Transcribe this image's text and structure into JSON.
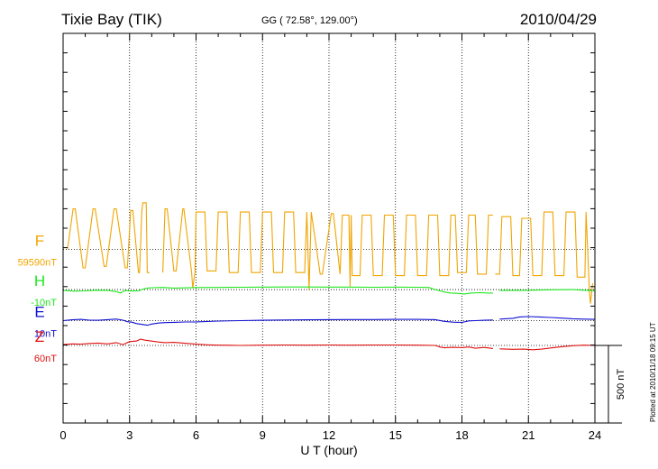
{
  "header": {
    "station": "Tixie Bay (TIK)",
    "coords": "GG ( 72.58°, 129.00°)",
    "date": "2010/04/29"
  },
  "footer": {
    "plotted": "Plotted at 2010/11/18 09:15 UT"
  },
  "chart_data": {
    "type": "line",
    "xlabel": "U T (hour)",
    "xlim": [
      0,
      24
    ],
    "xticks": [
      "0",
      "3",
      "6",
      "9",
      "12",
      "15",
      "18",
      "21",
      "24"
    ],
    "scale_bar": {
      "value": 500,
      "label": "500 nT"
    },
    "series": [
      {
        "name": "F",
        "baseline_label": "59590nT",
        "color": "#f0a500",
        "offset_nT": 620,
        "segments": [
          {
            "x": [
              0.2,
              0.45,
              0.55,
              0.9,
              1.0,
              1.35,
              1.45,
              1.85,
              1.95,
              2.3,
              2.4,
              2.8,
              2.9,
              3.05,
              3.15,
              3.4,
              3.45,
              3.55,
              3.6,
              3.75,
              3.8,
              3.9
            ],
            "y": [
              620,
              880,
              880,
              500,
              500,
              880,
              880,
              510,
              510,
              880,
              880,
              500,
              500,
              870,
              870,
              470,
              470,
              860,
              920,
              920,
              470,
              470
            ]
          },
          {
            "x": [
              4.5,
              4.6,
              4.7,
              5.0,
              5.1,
              5.4,
              5.45,
              5.8,
              5.85,
              5.95,
              6.0,
              6.4,
              6.5,
              6.9,
              7.0,
              7.4,
              7.5,
              7.9,
              8.0,
              8.4,
              8.5,
              8.9,
              9.0,
              9.4,
              9.5,
              9.9,
              10.0,
              10.4,
              10.5,
              10.9,
              11.0,
              11.1,
              11.2,
              11.6,
              11.7,
              12.1,
              12.2,
              12.5,
              12.6,
              12.9,
              12.95,
              13.0,
              13.05,
              13.4,
              13.5,
              13.9,
              14.0,
              14.4,
              14.5,
              14.9,
              15.0,
              15.4,
              15.5,
              15.9,
              16.0,
              16.4,
              16.5,
              16.9,
              17.0,
              17.4,
              17.5,
              17.7,
              17.8,
              18.2,
              18.3,
              18.6,
              18.7,
              19.1,
              19.2,
              19.4
            ],
            "y": [
              470,
              880,
              880,
              480,
              480,
              880,
              880,
              470,
              370,
              470,
              860,
              860,
              480,
              480,
              860,
              860,
              470,
              470,
              860,
              860,
              470,
              470,
              860,
              860,
              470,
              470,
              860,
              860,
              470,
              470,
              860,
              360,
              860,
              460,
              460,
              850,
              850,
              460,
              840,
              840,
              380,
              840,
              450,
              450,
              840,
              840,
              450,
              450,
              840,
              840,
              450,
              450,
              840,
              840,
              450,
              450,
              840,
              840,
              450,
              450,
              840,
              840,
              470,
              470,
              840,
              840,
              460,
              460,
              840,
              840
            ]
          },
          {
            "x": [
              19.5,
              19.7,
              19.8,
              20.2,
              20.3,
              20.6,
              20.7,
              21.1,
              21.2,
              21.6,
              21.7,
              22.1,
              22.2,
              22.6,
              22.7,
              23.1,
              23.2,
              23.55,
              23.6,
              23.75,
              23.8,
              23.9
            ],
            "y": [
              460,
              460,
              830,
              830,
              450,
              450,
              820,
              820,
              450,
              450,
              860,
              860,
              450,
              450,
              860,
              860,
              440,
              440,
              860,
              350,
              270,
              400
            ]
          }
        ]
      },
      {
        "name": "H",
        "baseline_label": "-10nT",
        "color": "#1ee81e",
        "offset_nT": 360,
        "segments": [
          {
            "x": [
              0,
              0.5,
              1.0,
              1.5,
              2.0,
              2.4,
              2.6,
              2.8,
              3.0,
              3.4,
              3.6,
              3.8,
              4.0,
              4.5,
              5.0,
              6.0,
              7.0,
              8.0,
              9.0,
              10.0,
              11.0,
              12.0,
              13.0,
              14.0,
              15.0,
              16.0,
              16.5,
              16.8,
              17.2,
              17.5,
              17.8,
              18.1,
              18.4,
              18.8,
              19.2,
              19.4
            ],
            "y": [
              355,
              350,
              352,
              356,
              355,
              347,
              338,
              355,
              351,
              352,
              362,
              370,
              372,
              374,
              370,
              373,
              374,
              375,
              376,
              377,
              377,
              376,
              376,
              375,
              376,
              375,
              374,
              360,
              345,
              338,
              336,
              332,
              338,
              340,
              338,
              338
            ]
          },
          {
            "x": [
              19.7,
              20.5,
              21.0,
              22.0,
              23.0,
              23.5,
              24.0
            ],
            "y": [
              355,
              355,
              356,
              359,
              360,
              356,
              353
            ]
          }
        ]
      },
      {
        "name": "E",
        "baseline_label": "10nT",
        "color": "#1010d0",
        "offset_nT": 160,
        "segments": [
          {
            "x": [
              0,
              0.4,
              0.8,
              1.2,
              1.6,
              2.0,
              2.4,
              2.7,
              2.9,
              3.1,
              3.3,
              3.6,
              3.8,
              4.0,
              4.3,
              4.6,
              5.0,
              5.5,
              6.0,
              7.0,
              8.0,
              9.0,
              10.0,
              11.0,
              12.0,
              13.0,
              14.0,
              15.0,
              16.0,
              16.8,
              17.2,
              17.6,
              18.0,
              18.3,
              18.6,
              19.0,
              19.4
            ],
            "y": [
              160,
              165,
              168,
              163,
              162,
              166,
              170,
              163,
              153,
              150,
              141,
              135,
              130,
              138,
              144,
              147,
              149,
              151,
              152,
              157,
              160,
              162,
              164,
              165,
              166,
              167,
              167,
              168,
              168,
              166,
              155,
              150,
              148,
              158,
              160,
              162,
              164
            ]
          },
          {
            "x": [
              19.7,
              20.3,
              20.6,
              21.0,
              21.5,
              22.0,
              22.5,
              23.0,
              23.5,
              24.0
            ],
            "y": [
              170,
              175,
              184,
              186,
              184,
              180,
              176,
              172,
              170,
              168
            ]
          }
        ]
      },
      {
        "name": "Z",
        "baseline_label": "60nT",
        "color": "#e01010",
        "offset_nT": 0,
        "segments": [
          {
            "x": [
              0,
              0.4,
              0.8,
              1.2,
              1.6,
              2.0,
              2.4,
              2.7,
              3.0,
              3.3,
              3.5,
              3.7,
              4.0,
              4.3,
              4.6,
              5.0,
              5.5,
              6.0,
              6.5,
              7.0,
              8.0,
              9.0,
              10.0,
              11.0,
              12.0,
              13.0,
              14.0,
              15.0,
              16.0,
              16.8,
              17.0,
              17.2,
              17.6,
              18.0,
              18.3,
              18.6,
              19.0,
              19.4
            ],
            "y": [
              5,
              10,
              8,
              13,
              15,
              10,
              18,
              5,
              25,
              28,
              40,
              34,
              28,
              22,
              18,
              20,
              14,
              8,
              4,
              2,
              0,
              2,
              3,
              2,
              3,
              2,
              3,
              3,
              2,
              0,
              -10,
              -15,
              -12,
              -14,
              -10,
              -18,
              -13,
              -20
            ]
          },
          {
            "x": [
              19.7,
              20.3,
              20.8,
              21.2,
              21.6,
              22.0,
              22.5,
              23.0,
              23.5,
              24.0
            ],
            "y": [
              -22,
              -25,
              -24,
              -28,
              -24,
              -16,
              -8,
              -2,
              2,
              0
            ]
          }
        ]
      }
    ]
  }
}
